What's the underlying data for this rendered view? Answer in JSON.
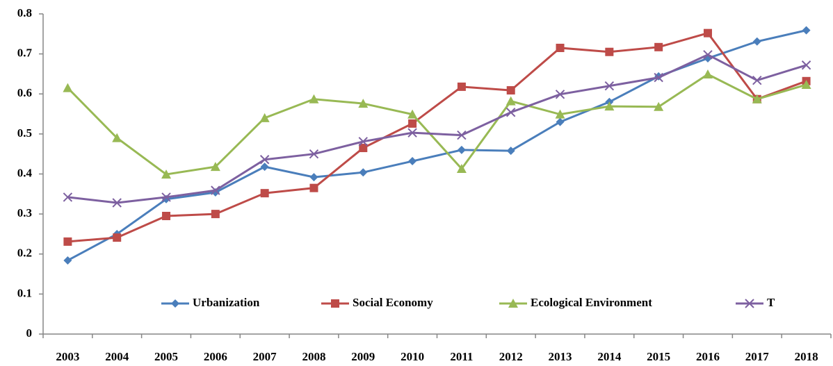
{
  "chart_data": {
    "type": "line",
    "categories": [
      "2003",
      "2004",
      "2005",
      "2006",
      "2007",
      "2008",
      "2009",
      "2010",
      "2011",
      "2012",
      "2013",
      "2014",
      "2015",
      "2016",
      "2017",
      "2018"
    ],
    "series": [
      {
        "name": "Urbanization",
        "color": "#4a7ebb",
        "marker": "diamond",
        "values": [
          0.184,
          0.25,
          0.337,
          0.354,
          0.418,
          0.392,
          0.404,
          0.432,
          0.46,
          0.458,
          0.53,
          0.58,
          0.644,
          0.689,
          0.731,
          0.759
        ]
      },
      {
        "name": "Social Economy",
        "color": "#be4b48",
        "marker": "square",
        "values": [
          0.231,
          0.241,
          0.295,
          0.3,
          0.352,
          0.365,
          0.465,
          0.526,
          0.618,
          0.609,
          0.715,
          0.705,
          0.717,
          0.752,
          0.587,
          0.632
        ]
      },
      {
        "name": "Ecological Environment",
        "color": "#98b954",
        "marker": "triangle",
        "values": [
          0.615,
          0.49,
          0.399,
          0.418,
          0.54,
          0.587,
          0.576,
          0.549,
          0.413,
          0.582,
          0.549,
          0.569,
          0.568,
          0.649,
          0.587,
          0.623
        ]
      },
      {
        "name": "T",
        "color": "#7d60a0",
        "marker": "x",
        "values": [
          0.342,
          0.328,
          0.342,
          0.359,
          0.436,
          0.45,
          0.481,
          0.503,
          0.497,
          0.554,
          0.599,
          0.62,
          0.641,
          0.698,
          0.634,
          0.672
        ]
      }
    ],
    "ylim": [
      0,
      0.8
    ],
    "yticks": [
      0,
      0.1,
      0.2,
      0.3,
      0.4,
      0.5,
      0.6,
      0.7,
      0.8
    ],
    "grid": false
  }
}
